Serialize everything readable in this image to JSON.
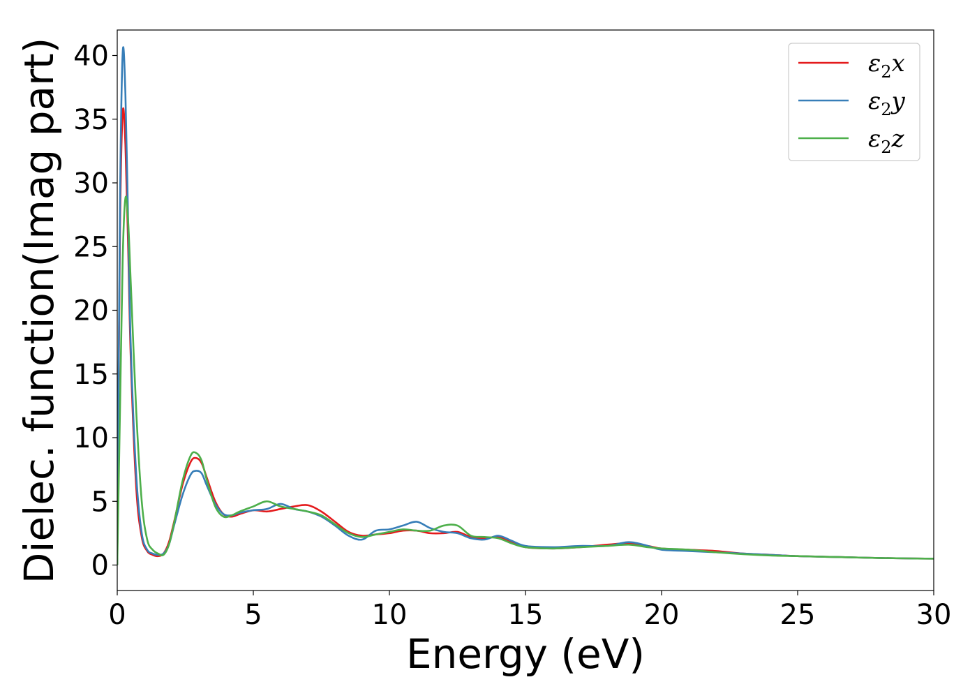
{
  "chart_data": {
    "type": "line",
    "title": "",
    "xlabel": "Energy (eV)",
    "ylabel": "Dielec. function(Imag part)",
    "xlim": [
      0,
      30
    ],
    "ylim": [
      -2,
      42
    ],
    "xticks": [
      0,
      5,
      10,
      15,
      20,
      25,
      30
    ],
    "yticks": [
      0,
      5,
      10,
      15,
      20,
      25,
      30,
      35,
      40
    ],
    "grid": false,
    "legend_position": "top-right",
    "x": [
      0,
      0.1,
      0.2,
      0.3,
      0.4,
      0.5,
      0.7,
      0.9,
      1.1,
      1.3,
      1.5,
      1.7,
      1.9,
      2.1,
      2.4,
      2.7,
      2.9,
      3.1,
      3.3,
      3.6,
      3.9,
      4.2,
      4.5,
      5,
      5.5,
      6,
      6.5,
      7,
      7.5,
      8,
      8.5,
      9,
      9.5,
      10,
      10.5,
      11,
      11.5,
      12,
      12.5,
      13,
      13.5,
      14,
      14.5,
      15,
      16,
      17,
      18,
      18.8,
      19.5,
      20,
      21,
      22,
      23,
      24,
      25,
      26,
      27,
      28,
      29,
      30
    ],
    "series": [
      {
        "name": "ε₂x",
        "label_base": "ε",
        "label_sub": "2",
        "label_suffix": "x",
        "color": "#e41a1c",
        "values": [
          0,
          26,
          35.5,
          33,
          25,
          16,
          6,
          2.2,
          1.1,
          0.8,
          0.7,
          0.9,
          1.8,
          3.5,
          6.3,
          8.1,
          8.4,
          8,
          6.8,
          5,
          4,
          3.8,
          4,
          4.3,
          4.2,
          4.4,
          4.6,
          4.7,
          4.2,
          3.4,
          2.6,
          2.3,
          2.4,
          2.5,
          2.7,
          2.7,
          2.5,
          2.5,
          2.6,
          2.2,
          2.1,
          2.2,
          1.8,
          1.4,
          1.3,
          1.4,
          1.6,
          1.7,
          1.5,
          1.3,
          1.2,
          1.1,
          0.9,
          0.8,
          0.7,
          0.65,
          0.6,
          0.55,
          0.52,
          0.5
        ]
      },
      {
        "name": "ε₂y",
        "label_base": "ε",
        "label_sub": "2",
        "label_suffix": "y",
        "color": "#377eb8",
        "values": [
          0,
          28,
          40.2,
          37,
          27,
          17,
          7,
          2.5,
          1.2,
          0.9,
          0.8,
          0.9,
          1.6,
          3.2,
          5.5,
          7.1,
          7.4,
          7.2,
          6.2,
          4.8,
          4,
          3.9,
          4.1,
          4.3,
          4.4,
          4.8,
          4.4,
          4.2,
          3.8,
          3.1,
          2.3,
          2,
          2.7,
          2.8,
          3.1,
          3.4,
          2.9,
          2.6,
          2.5,
          2.1,
          2,
          2.3,
          1.9,
          1.5,
          1.4,
          1.5,
          1.5,
          1.8,
          1.5,
          1.2,
          1.1,
          1,
          0.9,
          0.8,
          0.7,
          0.65,
          0.6,
          0.55,
          0.52,
          0.5
        ]
      },
      {
        "name": "ε₂z",
        "label_base": "ε",
        "label_sub": "2",
        "label_suffix": "z",
        "color": "#4daf4a",
        "values": [
          0,
          12,
          24,
          28.8,
          27,
          22,
          12,
          5,
          2,
          1.2,
          0.9,
          0.8,
          1.6,
          3.4,
          6.6,
          8.6,
          8.8,
          8.2,
          6.6,
          4.6,
          3.8,
          3.9,
          4.2,
          4.6,
          5,
          4.6,
          4.4,
          4.2,
          3.9,
          3.2,
          2.5,
          2.2,
          2.4,
          2.6,
          2.8,
          2.7,
          2.7,
          3.1,
          3.1,
          2.3,
          2.2,
          2.1,
          1.7,
          1.4,
          1.3,
          1.4,
          1.5,
          1.6,
          1.4,
          1.3,
          1.2,
          1,
          0.85,
          0.75,
          0.7,
          0.65,
          0.6,
          0.55,
          0.52,
          0.5
        ]
      }
    ]
  }
}
